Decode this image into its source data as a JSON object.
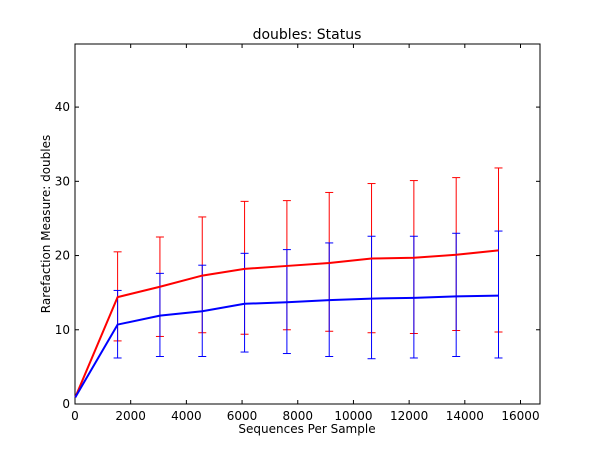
{
  "chart_data": {
    "type": "line",
    "title": "doubles: Status",
    "xlabel": "Sequences Per Sample",
    "ylabel": "Rarefaction Measure: doubles",
    "xlim": [
      0,
      16700
    ],
    "ylim": [
      0,
      48.5
    ],
    "xticks": [
      0,
      2000,
      4000,
      6000,
      8000,
      10000,
      12000,
      14000,
      16000
    ],
    "yticks": [
      0,
      10,
      20,
      30,
      40
    ],
    "grid": false,
    "x": [
      10,
      1530,
      3050,
      4570,
      6090,
      7610,
      9130,
      10650,
      12170,
      13690,
      15210
    ],
    "series": [
      {
        "color": "#ff0000",
        "values": [
          0.9,
          14.4,
          15.8,
          17.3,
          18.2,
          18.6,
          19.0,
          19.6,
          19.7,
          20.1,
          20.7
        ],
        "lower": [
          0.9,
          8.5,
          9.1,
          9.6,
          9.4,
          10.0,
          9.8,
          9.6,
          9.5,
          9.9,
          9.7
        ],
        "upper": [
          0.9,
          20.5,
          22.5,
          25.2,
          27.3,
          27.4,
          28.5,
          29.7,
          30.1,
          30.5,
          31.8
        ]
      },
      {
        "color": "#0000ff",
        "values": [
          0.9,
          10.7,
          11.9,
          12.5,
          13.5,
          13.7,
          14.0,
          14.2,
          14.3,
          14.5,
          14.6
        ],
        "lower": [
          0.9,
          6.2,
          6.4,
          6.4,
          7.0,
          6.8,
          6.4,
          6.1,
          6.2,
          6.4,
          6.2
        ],
        "upper": [
          0.9,
          15.3,
          17.6,
          18.7,
          20.3,
          20.8,
          21.7,
          22.6,
          22.6,
          23.0,
          23.3
        ]
      }
    ]
  }
}
